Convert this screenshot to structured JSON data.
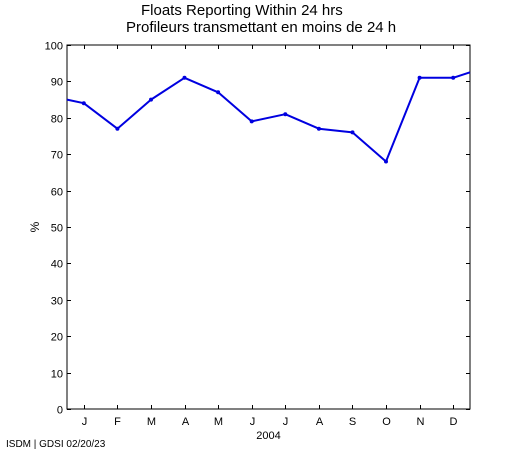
{
  "chart_data": {
    "type": "line",
    "title": "Floats Reporting Within 24 hrs",
    "subtitle": "Profileurs transmettant en moins de 24 h",
    "xlabel": "2004",
    "ylabel": "%",
    "ylim": [
      0,
      100
    ],
    "yticks": [
      0,
      10,
      20,
      30,
      40,
      50,
      60,
      70,
      80,
      90,
      100
    ],
    "categories": [
      "J",
      "F",
      "M",
      "A",
      "M",
      "J",
      "J",
      "A",
      "S",
      "O",
      "N",
      "D"
    ],
    "series": [
      {
        "color": "#0000e0",
        "x": [
          -0.5,
          0,
          1,
          2,
          3,
          4,
          5,
          6,
          7,
          8,
          9,
          10,
          11,
          11.5
        ],
        "values": [
          85,
          84,
          77,
          85,
          91,
          87,
          79,
          81,
          77,
          76,
          68,
          91,
          91,
          92.5
        ]
      }
    ],
    "grid": false,
    "legend": "none"
  },
  "footer": {
    "credit": "ISDM | GDSI 02/20/23"
  }
}
